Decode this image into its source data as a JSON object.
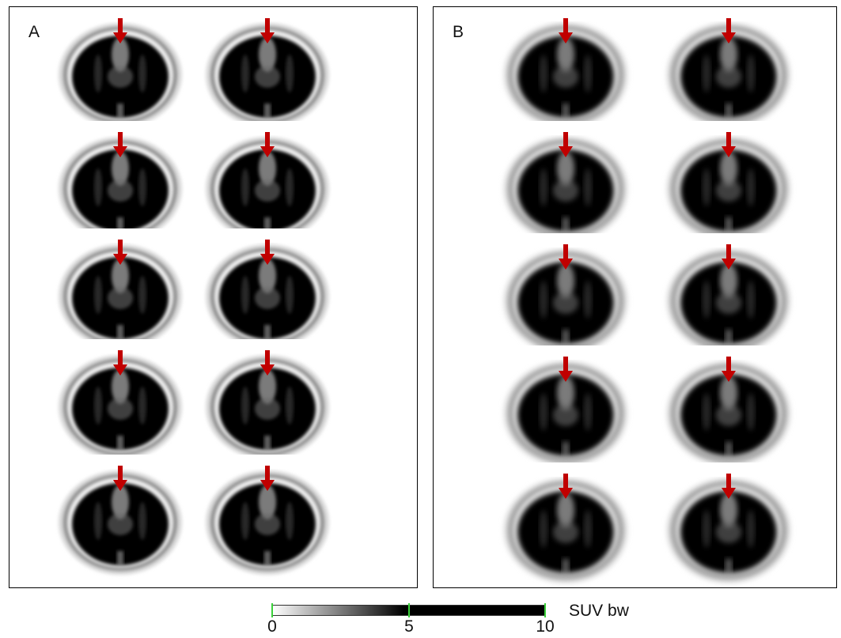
{
  "panels": [
    {
      "id": "A",
      "label": "A",
      "slices": 10
    },
    {
      "id": "B",
      "label": "B",
      "slices": 10
    }
  ],
  "arrow_color": "#c00000",
  "colorbar": {
    "ticks": [
      "0",
      "5",
      "10"
    ],
    "unit": "SUV bw",
    "tick_color": "#3bd13b"
  }
}
